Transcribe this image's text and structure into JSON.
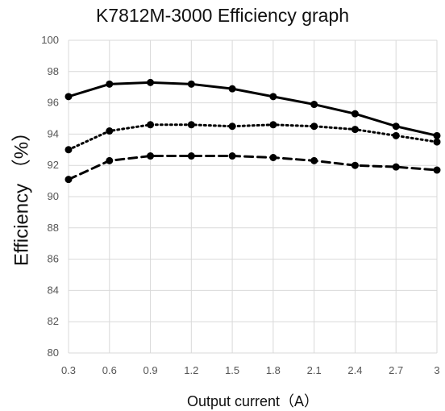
{
  "chart_data": {
    "type": "line",
    "title": "K7812M-3000 Efficiency graph",
    "xlabel": "Output current（A）",
    "ylabel": "Efficiency （%）",
    "categories": [
      "0.3",
      "0.6",
      "0.9",
      "1.2",
      "1.5",
      "1.8",
      "2.1",
      "2.4",
      "2.7",
      "3"
    ],
    "y_ticks": [
      "80",
      "82",
      "84",
      "86",
      "88",
      "90",
      "92",
      "94",
      "96",
      "98",
      "100"
    ],
    "ylim": [
      80,
      100
    ],
    "grid": true,
    "legend": "none",
    "series": [
      {
        "values": [
          96.4,
          97.2,
          97.3,
          97.2,
          96.9,
          96.4,
          95.9,
          95.3,
          94.5,
          93.9
        ],
        "style": "solid",
        "color": "#000000"
      },
      {
        "values": [
          93.0,
          94.2,
          94.6,
          94.6,
          94.5,
          94.6,
          94.5,
          94.3,
          93.9,
          93.5
        ],
        "style": "dotted",
        "color": "#000000"
      },
      {
        "values": [
          91.1,
          92.3,
          92.6,
          92.6,
          92.6,
          92.5,
          92.3,
          92.0,
          91.9,
          91.7
        ],
        "style": "dashed",
        "color": "#000000"
      }
    ]
  }
}
